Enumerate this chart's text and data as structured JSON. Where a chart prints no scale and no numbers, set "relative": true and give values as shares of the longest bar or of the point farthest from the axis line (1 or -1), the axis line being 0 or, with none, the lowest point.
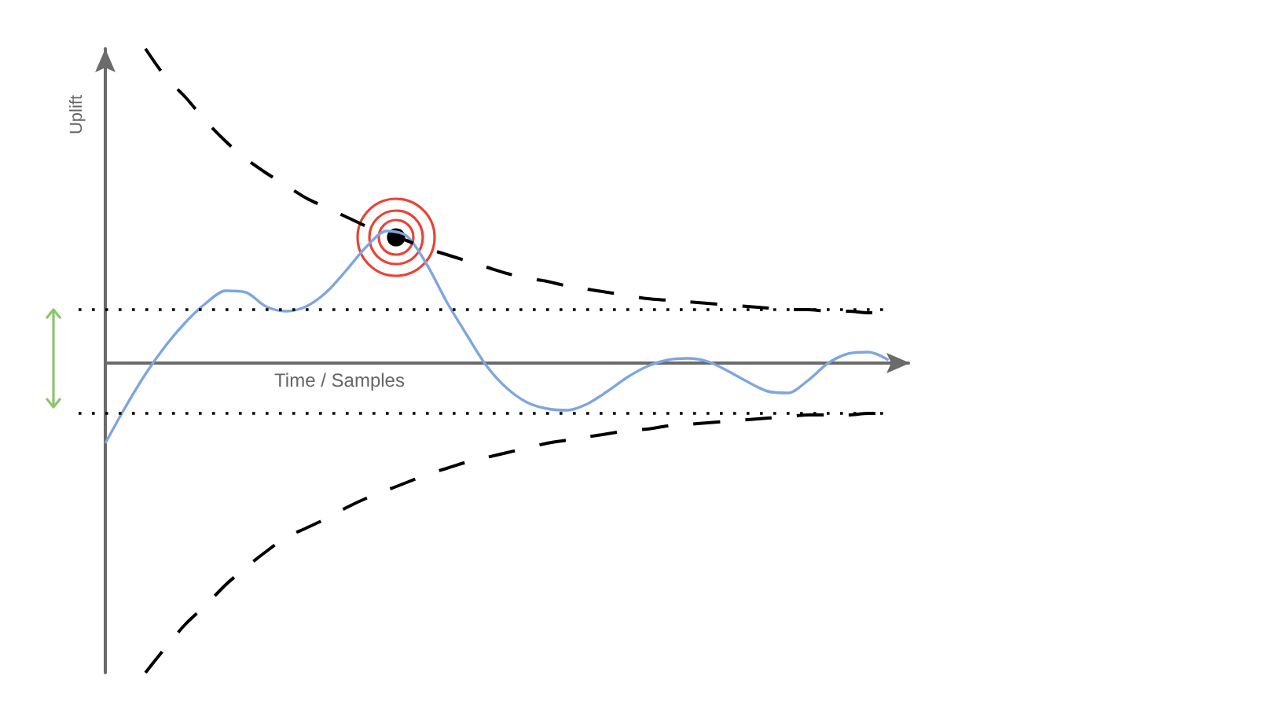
{
  "chart_data": {
    "type": "line",
    "relative": true,
    "xlabel": "Time / Samples",
    "ylabel": "Uplift",
    "marker": "none",
    "categories": [
      null,
      null,
      null,
      null,
      null,
      null,
      null,
      null,
      null,
      null,
      null,
      null,
      null,
      null,
      null,
      null,
      null,
      null,
      null,
      null,
      null,
      null,
      null,
      null,
      null,
      null,
      null,
      null,
      null,
      null,
      null,
      null,
      null,
      null,
      null,
      null,
      null,
      null,
      null,
      null,
      null
    ],
    "series": [
      {
        "color": "#7ea6e0",
        "line_style": "solid",
        "values": [
          -0.255,
          -0.14,
          -0.035,
          0.055,
          0.13,
          0.19,
          0.23,
          0.225,
          0.18,
          0.165,
          0.18,
          0.225,
          0.295,
          0.37,
          0.42,
          0.405,
          0.315,
          0.195,
          0.09,
          -0.01,
          -0.08,
          -0.125,
          -0.145,
          -0.15,
          -0.13,
          -0.09,
          -0.045,
          -0.01,
          0.01,
          0.015,
          0.005,
          -0.025,
          -0.06,
          -0.09,
          -0.095,
          -0.055,
          0,
          0.03,
          0.035,
          0.01,
          null
        ]
      },
      {
        "color": "#000000",
        "line_style": "dashed",
        "values": [
          null,
          null,
          1,
          0.91,
          0.845,
          0.77,
          0.705,
          0.65,
          0.605,
          0.565,
          0.525,
          0.495,
          0.465,
          0.435,
          0.41,
          0.39,
          0.365,
          0.345,
          0.325,
          0.305,
          0.285,
          0.27,
          0.26,
          0.245,
          0.235,
          0.225,
          0.215,
          0.205,
          0.2,
          0.195,
          0.19,
          0.185,
          0.18,
          0.175,
          0.17,
          0.17,
          0.165,
          0.165,
          0.16,
          0.16,
          null
        ]
      },
      {
        "color": "#000000",
        "line_style": "dashed",
        "values": [
          null,
          null,
          -0.985,
          -0.905,
          -0.83,
          -0.77,
          -0.705,
          -0.65,
          -0.6,
          -0.555,
          -0.525,
          -0.495,
          -0.46,
          -0.43,
          -0.405,
          -0.38,
          -0.355,
          -0.335,
          -0.315,
          -0.3,
          -0.285,
          -0.27,
          -0.255,
          -0.245,
          -0.235,
          -0.225,
          -0.215,
          -0.21,
          -0.2,
          -0.195,
          -0.19,
          -0.185,
          -0.18,
          -0.175,
          -0.17,
          -0.165,
          -0.165,
          -0.165,
          -0.16,
          -0.16,
          null
        ]
      }
    ],
    "ref_lines": [
      {
        "axis": "y",
        "value": 0.17,
        "line_style": "dotted",
        "color": "#000000"
      },
      {
        "axis": "y",
        "value": -0.16,
        "line_style": "dotted",
        "color": "#000000"
      }
    ]
  }
}
